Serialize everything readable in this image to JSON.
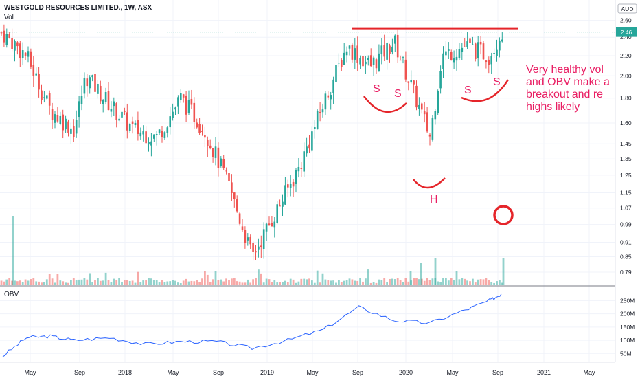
{
  "header": {
    "title": "WESTGOLD RESOURCES LIMITED., 1W, ASX",
    "vol_label": "Vol",
    "currency": "AUD",
    "last_price_label": "2.46"
  },
  "price_axis": {
    "ticks": [
      "2.60",
      "2.40",
      "2.20",
      "2.00",
      "1.80",
      "1.60",
      "1.45",
      "1.35",
      "1.25",
      "1.15",
      "1.07",
      "0.99",
      "0.91",
      "0.85",
      "0.79"
    ]
  },
  "obv_axis": {
    "ticks": [
      "250M",
      "200M",
      "150M",
      "100M",
      "50M"
    ]
  },
  "time_axis": {
    "ticks": [
      "May",
      "Sep",
      "2018",
      "May",
      "Sep",
      "2019",
      "May",
      "Sep",
      "2020",
      "May",
      "Sep",
      "2021",
      "May"
    ]
  },
  "annotations": {
    "resistance_level": 2.5,
    "shoulder_left_label": "S",
    "shoulder_left2_label": "S",
    "head_label": "H",
    "shoulder_right_label": "S",
    "shoulder_right2_label": "S",
    "note_lines": [
      "Very healthy vol",
      "and OBV make a",
      "breakout and re",
      "highs likely"
    ]
  },
  "colors": {
    "up": "#26a69a",
    "down": "#ef5350",
    "obv_line": "#2962ff",
    "annotation_red": "#e5252a",
    "annotation_pink": "#e91e63",
    "last_price_tag": "#26a69a"
  },
  "chart_data": [
    {
      "type": "candlestick",
      "title": "WESTGOLD RESOURCES LIMITED., 1W, ASX",
      "ylabel": "AUD",
      "scale": "log",
      "ylim": [
        0.75,
        2.7
      ],
      "last_price": 2.46,
      "weekly_close_approx": [
        {
          "date": "2017-03",
          "close": 2.45
        },
        {
          "date": "2017-05",
          "close": 2.2
        },
        {
          "date": "2017-07",
          "close": 1.7
        },
        {
          "date": "2017-09",
          "close": 1.55
        },
        {
          "date": "2017-10",
          "close": 2.0
        },
        {
          "date": "2017-12",
          "close": 1.75
        },
        {
          "date": "2018-02",
          "close": 1.55
        },
        {
          "date": "2018-04",
          "close": 1.5
        },
        {
          "date": "2018-06",
          "close": 1.8
        },
        {
          "date": "2018-08",
          "close": 1.55
        },
        {
          "date": "2018-10",
          "close": 1.2
        },
        {
          "date": "2018-12",
          "close": 0.85
        },
        {
          "date": "2019-02",
          "close": 1.05
        },
        {
          "date": "2019-04",
          "close": 1.3
        },
        {
          "date": "2019-06",
          "close": 1.75
        },
        {
          "date": "2019-08",
          "close": 2.3
        },
        {
          "date": "2019-10",
          "close": 2.1
        },
        {
          "date": "2019-12",
          "close": 2.35
        },
        {
          "date": "2020-03",
          "close": 1.5
        },
        {
          "date": "2020-04",
          "close": 2.2
        },
        {
          "date": "2020-06",
          "close": 2.3
        },
        {
          "date": "2020-08",
          "close": 2.2
        },
        {
          "date": "2020-09",
          "close": 2.46
        }
      ]
    },
    {
      "type": "line",
      "title": "OBV",
      "series": [
        {
          "name": "OBV",
          "points": [
            {
              "date": "2017-03",
              "value": 40
            },
            {
              "date": "2017-05",
              "value": 110
            },
            {
              "date": "2017-07",
              "value": 115
            },
            {
              "date": "2017-09",
              "value": 100
            },
            {
              "date": "2017-12",
              "value": 110
            },
            {
              "date": "2018-03",
              "value": 85
            },
            {
              "date": "2018-06",
              "value": 95
            },
            {
              "date": "2018-09",
              "value": 95
            },
            {
              "date": "2018-12",
              "value": 70
            },
            {
              "date": "2019-03",
              "value": 100
            },
            {
              "date": "2019-06",
              "value": 140
            },
            {
              "date": "2019-09",
              "value": 225
            },
            {
              "date": "2019-12",
              "value": 175
            },
            {
              "date": "2020-03",
              "value": 165
            },
            {
              "date": "2020-06",
              "value": 215
            },
            {
              "date": "2020-08",
              "value": 250
            },
            {
              "date": "2020-09",
              "value": 275
            }
          ]
        }
      ],
      "ylim": [
        30,
        290
      ]
    }
  ]
}
